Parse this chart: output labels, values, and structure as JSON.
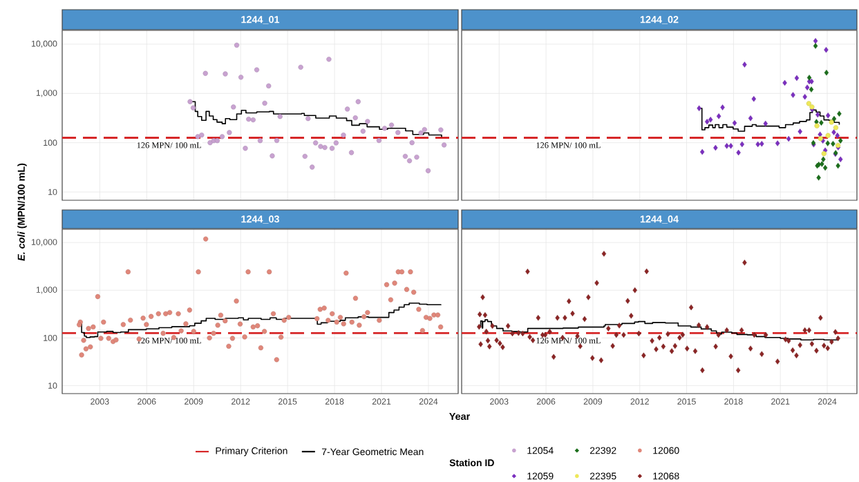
{
  "chart_data": [
    {
      "type": "scatter",
      "title": "1244_01",
      "ylabel": "*E. coli* (MPN/100 mL)",
      "annotations": [
        "Primary Criterion"
      ],
      "legend_title": "Station ID",
      "legend": "bottom",
      "log": true,
      "grid": true,
      "tick_labels": "y",
      "xlim": [
        2000.6,
        2025.9
      ],
      "xticks": [
        2003,
        2006,
        2009,
        2012,
        2015,
        2018,
        2021,
        2024
      ],
      "ylim": [
        6.8,
        19000
      ],
      "yticks": [
        {
          "value": 10,
          "label": "10"
        },
        {
          "value": 100,
          "label": "100"
        },
        {
          "value": 1000,
          "label": "1,000"
        },
        {
          "value": 10000,
          "label": "10,000"
        }
      ],
      "ref_lines": [
        {
          "axis": "y",
          "value": 126,
          "label": "126 MPN/ 100 mL",
          "color": "#d62728",
          "line_style": "dashed"
        }
      ],
      "series": [
        {
          "name": "12054",
          "marker": "circle",
          "color": "#c8a2d0",
          "x": [
            2008.77,
            2008.97,
            2009.75,
            2009.26,
            2009.51,
            2010.05,
            2010.28,
            2010.51,
            2010.82,
            2011.02,
            2011.28,
            2011.54,
            2011.75,
            2012.02,
            2012.3,
            2012.51,
            2012.8,
            2013.03,
            2013.25,
            2013.54,
            2013.79,
            2014.02,
            2014.31,
            2014.52,
            2015.84,
            2016.11,
            2016.31,
            2016.57,
            2016.79,
            2017.11,
            2017.38,
            2017.64,
            2017.84,
            2018.1,
            2018.57,
            2018.82,
            2019.08,
            2019.33,
            2019.51,
            2019.82,
            2020.11,
            2020.84,
            2021.2,
            2021.64,
            2022.05,
            2022.52,
            2022.79,
            2022.95,
            2023.25,
            2023.52,
            2023.75,
            2023.98,
            2024.79,
            2025.0
          ],
          "values": [
            680,
            510,
            2550,
            133,
            143,
            100,
            110,
            110,
            133,
            2490,
            161,
            530,
            9530,
            2130,
            77,
            300,
            291,
            3010,
            110,
            634,
            1420,
            54,
            111,
            340,
            3400,
            53,
            309,
            32,
            99,
            84,
            80,
            4930,
            77,
            99,
            143,
            481,
            63,
            320,
            680,
            171,
            270,
            111,
            196,
            228,
            161,
            53,
            43,
            100,
            51,
            158,
            185,
            27,
            182,
            90
          ]
        },
        {
          "name": "7-Year Geometric Mean",
          "type": "step",
          "color": "#000000",
          "x": [
            2008.82,
            2009.1,
            2009.26,
            2009.51,
            2009.79,
            2010.0,
            2010.25,
            2010.49,
            2010.82,
            2011.03,
            2011.31,
            2011.75,
            2012.05,
            2012.34,
            2013.03,
            2013.84,
            2014.1,
            2015.9,
            2016.07,
            2016.8,
            2017.67,
            2018.11,
            2018.77,
            2019.1,
            2019.59,
            2020.08,
            2020.87,
            2021.39,
            2022.54,
            2023.0,
            2023.69,
            2024.02,
            2024.84
          ],
          "values": [
            680,
            431,
            340,
            284,
            431,
            348,
            294,
            261,
            243,
            309,
            294,
            383,
            453,
            402,
            422,
            431,
            383,
            393,
            357,
            316,
            348,
            316,
            281,
            226,
            243,
            210,
            187,
            196,
            174,
            147,
            158,
            143,
            130
          ]
        }
      ]
    },
    {
      "type": "scatter",
      "title": "1244_02",
      "legend": "bottom",
      "log": true,
      "grid": true,
      "tick_labels": false,
      "xlim": [
        2000.6,
        2025.9
      ],
      "xticks": [
        2003,
        2006,
        2009,
        2012,
        2015,
        2018,
        2021,
        2024
      ],
      "ylim": [
        6.8,
        19000
      ],
      "yticks": [
        {
          "value": 10,
          "label": null
        },
        {
          "value": 100,
          "label": null
        },
        {
          "value": 1000,
          "label": null
        },
        {
          "value": 10000,
          "label": null
        }
      ],
      "ref_lines": [
        {
          "axis": "y",
          "value": 126,
          "label": "126 MPN/ 100 mL",
          "color": "#d62728",
          "line_style": "dashed"
        }
      ],
      "series": [
        {
          "name": "12059",
          "marker": "diamond",
          "color": "#7b2fbf",
          "x": [
            2015.8,
            2016.0,
            2016.31,
            2016.53,
            2016.85,
            2017.06,
            2017.3,
            2017.57,
            2017.83,
            2018.07,
            2018.32,
            2018.55,
            2018.71,
            2019.09,
            2019.3,
            2019.56,
            2019.81,
            2020.05,
            2020.82,
            2021.28,
            2021.53,
            2021.81,
            2022.05,
            2022.26,
            2022.57,
            2022.72,
            2022.85,
            2023.0,
            2023.03,
            2023.13,
            2023.25,
            2023.39,
            2023.54,
            2023.72,
            2023.87,
            2023.93,
            2024.05,
            2024.42,
            2024.52,
            2024.65,
            2024.7,
            2024.85
          ],
          "values": [
            500,
            65,
            267,
            294,
            79,
            344,
            520,
            86,
            86,
            251,
            63,
            93,
            3840,
            313,
            774,
            93,
            95,
            245,
            97,
            1640,
            120,
            929,
            2050,
            168,
            855,
            1320,
            1750,
            1750,
            472,
            92,
            11600,
            370,
            147,
            110,
            70,
            7660,
            357,
            163,
            59,
            140,
            80,
            46
          ]
        },
        {
          "name": "22392",
          "marker": "diamond",
          "color": "#1b6e1b",
          "x": [
            2023.25,
            2022.85,
            2022.98,
            2023.31,
            2023.62,
            2023.11,
            2023.36,
            2023.46,
            2023.66,
            2023.75,
            2023.87,
            2023.45,
            2023.95,
            2024.03,
            2024.37,
            2024.44,
            2024.54,
            2024.69,
            2024.77,
            2024.85
          ],
          "values": [
            9190,
            2090,
            1200,
            264,
            254,
            99,
            34,
            36,
            37,
            46,
            31,
            19.5,
            2640,
            97,
            95,
            305,
            62,
            34,
            388,
            110
          ]
        },
        {
          "name": "22395",
          "marker": "circle",
          "color": "#eee85a",
          "x": [
            2022.82,
            2023.02,
            2023.34,
            2023.57,
            2024.05,
            2023.79,
            2024.27,
            2024.55,
            2024.69
          ],
          "values": [
            624,
            532,
            220,
            121,
            140,
            60,
            261,
            202,
            88
          ]
        },
        {
          "type": "step",
          "color": "#000000",
          "x": [
            2015.85,
            2015.98,
            2016.17,
            2016.42,
            2016.67,
            2016.83,
            2017.07,
            2017.32,
            2017.57,
            2017.98,
            2018.3,
            2018.71,
            2019.2,
            2019.45,
            2020.92,
            2021.33,
            2021.82,
            2022.23,
            2022.67,
            2022.89,
            2023.05,
            2023.29,
            2023.54,
            2023.79,
            2024.11,
            2024.44,
            2024.77
          ],
          "values": [
            500,
            183,
            202,
            228,
            202,
            233,
            202,
            233,
            207,
            190,
            171,
            215,
            233,
            217,
            202,
            233,
            251,
            270,
            290,
            408,
            460,
            418,
            348,
            290,
            284,
            258,
            233
          ]
        }
      ]
    },
    {
      "type": "scatter",
      "title": "1244_03",
      "xlabel": "Year",
      "legend": "bottom",
      "log": true,
      "grid": true,
      "xlim": [
        2000.6,
        2025.9
      ],
      "xticks": [
        2003,
        2006,
        2009,
        2012,
        2015,
        2018,
        2021,
        2024
      ],
      "ylim": [
        6.8,
        19000
      ],
      "yticks": [
        {
          "value": 10,
          "label": "10"
        },
        {
          "value": 100,
          "label": "100"
        },
        {
          "value": 1000,
          "label": "1,000"
        },
        {
          "value": 10000,
          "label": "10,000"
        }
      ],
      "ref_lines": [
        {
          "axis": "y",
          "value": 126,
          "label": "126 MPN/ 100 mL",
          "color": "#d62728",
          "line_style": "dashed"
        }
      ],
      "series": [
        {
          "name": "12060",
          "marker": "circle",
          "color": "#e0877a",
          "x": [
            2001.76,
            2001.69,
            2001.84,
            2001.97,
            2002.12,
            2002.28,
            2002.4,
            2002.58,
            2002.87,
            2003.07,
            2003.24,
            2003.57,
            2003.85,
            2004.04,
            2004.5,
            2004.81,
            2004.96,
            2005.51,
            2005.77,
            2005.98,
            2006.28,
            2006.75,
            2007.05,
            2007.21,
            2007.47,
            2007.73,
            2008.02,
            2008.2,
            2008.5,
            2008.74,
            2009.0,
            2009.3,
            2009.77,
            2010.01,
            2010.27,
            2010.54,
            2010.73,
            2011.01,
            2011.24,
            2011.48,
            2011.73,
            2011.97,
            2012.26,
            2012.48,
            2012.8,
            2013.08,
            2013.29,
            2013.52,
            2013.83,
            2014.09,
            2014.3,
            2014.58,
            2014.78,
            2015.07,
            2016.88,
            2017.08,
            2017.34,
            2017.59,
            2017.85,
            2018.14,
            2018.37,
            2018.58,
            2018.74,
            2019.11,
            2019.34,
            2019.58,
            2019.88,
            2020.11,
            2020.86,
            2021.33,
            2021.59,
            2021.84,
            2022.07,
            2022.3,
            2022.61,
            2022.85,
            2023.06,
            2023.38,
            2023.62,
            2023.85,
            2024.09,
            2024.35,
            2024.6,
            2024.78
          ],
          "values": [
            215,
            189,
            44,
            89,
            59,
            158,
            65,
            170,
            736,
            98,
            215,
            98,
            84,
            91,
            191,
            2430,
            236,
            95,
            260,
            191,
            282,
            322,
            125,
            322,
            341,
            102,
            322,
            141,
            198,
            384,
            137,
            2430,
            11900,
            100,
            125,
            185,
            300,
            228,
            67,
            98,
            594,
            196,
            105,
            2430,
            170,
            180,
            62,
            137,
            2430,
            322,
            35,
            104,
            234,
            270,
            254,
            398,
            423,
            234,
            322,
            215,
            270,
            198,
            2290,
            215,
            678,
            185,
            279,
            341,
            234,
            1310,
            631,
            1410,
            2430,
            2430,
            1040,
            2430,
            910,
            398,
            143,
            270,
            257,
            303,
            303,
            170
          ]
        },
        {
          "type": "step",
          "color": "#000000",
          "x": [
            2001.76,
            2001.84,
            2002.02,
            2002.14,
            2002.38,
            2002.67,
            2002.87,
            2003.44,
            2003.85,
            2004.34,
            2004.83,
            2005.48,
            2005.97,
            2006.78,
            2007.6,
            2008.74,
            2009.07,
            2009.48,
            2009.8,
            2010.37,
            2011.03,
            2011.85,
            2012.18,
            2012.49,
            2013.31,
            2013.88,
            2014.28,
            2014.78,
            2016.9,
            2017.14,
            2017.55,
            2018.37,
            2018.69,
            2019.51,
            2020.17,
            2021.47,
            2021.8,
            2022.12,
            2022.45,
            2022.77,
            2023.1,
            2023.42,
            2023.91,
            2024.79
          ],
          "values": [
            203,
            130,
            109,
            102,
            105,
            107,
            133,
            137,
            130,
            133,
            149,
            149,
            155,
            164,
            172,
            180,
            203,
            228,
            257,
            245,
            257,
            264,
            239,
            257,
            245,
            264,
            245,
            257,
            194,
            208,
            223,
            234,
            264,
            276,
            270,
            341,
            384,
            443,
            498,
            535,
            535,
            510,
            498,
            486
          ]
        }
      ]
    },
    {
      "type": "scatter",
      "title": "1244_04",
      "legend": "bottom",
      "log": true,
      "grid": true,
      "tick_labels": "x",
      "xlim": [
        2000.6,
        2025.9
      ],
      "xticks": [
        2003,
        2006,
        2009,
        2012,
        2015,
        2018,
        2021,
        2024
      ],
      "ylim": [
        6.8,
        19000
      ],
      "yticks": [
        {
          "value": 10,
          "label": null
        },
        {
          "value": 100,
          "label": null
        },
        {
          "value": 1000,
          "label": null
        },
        {
          "value": 10000,
          "label": null
        }
      ],
      "ref_lines": [
        {
          "axis": "y",
          "value": 126,
          "label": "126 MPN/ 100 mL",
          "color": "#d62728",
          "line_style": "dashed"
        }
      ],
      "series": [
        {
          "name": "12068",
          "marker": "diamond",
          "color": "#8b2525",
          "x": [
            2001.72,
            2001.76,
            2001.82,
            2001.95,
            2002.1,
            2002.18,
            2002.28,
            2002.38,
            2002.57,
            2002.84,
            2003.05,
            2003.23,
            2003.57,
            2003.85,
            2004.24,
            2004.51,
            2004.82,
            2004.96,
            2005.16,
            2005.5,
            2005.78,
            2005.95,
            2006.24,
            2006.49,
            2006.73,
            2007.06,
            2007.21,
            2007.47,
            2007.7,
            2008.01,
            2008.19,
            2008.47,
            2008.71,
            2008.97,
            2009.25,
            2009.53,
            2009.71,
            2009.99,
            2010.27,
            2010.5,
            2010.69,
            2010.97,
            2011.23,
            2011.45,
            2011.69,
            2011.94,
            2012.25,
            2012.44,
            2012.79,
            2013.05,
            2013.26,
            2013.51,
            2013.8,
            2014.05,
            2014.26,
            2014.55,
            2014.75,
            2015.03,
            2015.29,
            2015.55,
            2015.78,
            2016.01,
            2016.31,
            2016.86,
            2017.04,
            2017.57,
            2017.83,
            2018.3,
            2018.52,
            2018.71,
            2019.09,
            2019.33,
            2019.81,
            2020.07,
            2020.82,
            2021.33,
            2021.53,
            2021.79,
            2022.03,
            2022.26,
            2022.57,
            2022.84,
            2023.02,
            2023.31,
            2023.57,
            2023.79,
            2024.03,
            2024.28,
            2024.52,
            2024.69
          ],
          "values": [
            171,
            313,
            74,
            714,
            301,
            136,
            88,
            66,
            178,
            89,
            77,
            64,
            178,
            124,
            127,
            124,
            2460,
            105,
            89,
            264,
            116,
            116,
            135,
            40,
            264,
            101,
            264,
            590,
            324,
            109,
            67,
            249,
            714,
            38,
            1420,
            34,
            5830,
            158,
            68,
            116,
            182,
            116,
            597,
            291,
            1000,
            124,
            43,
            2490,
            87,
            58,
            101,
            66,
            121,
            53,
            68,
            101,
            117,
            60,
            437,
            53,
            185,
            21,
            169,
            66,
            116,
            145,
            41,
            21,
            145,
            3790,
            60,
            116,
            46,
            116,
            32,
            93,
            87,
            55,
            43,
            71,
            145,
            145,
            75,
            54,
            264,
            69,
            61,
            83,
            133,
            98
          ]
        },
        {
          "type": "step",
          "color": "#000000",
          "x": [
            2001.77,
            2001.82,
            2001.92,
            2001.95,
            2002.1,
            2002.26,
            2002.51,
            2002.84,
            2003.25,
            2003.82,
            2004.31,
            2004.83,
            2005.95,
            2007.09,
            2008.07,
            2009.71,
            2009.79,
            2010.86,
            2011.67,
            2011.92,
            2012.33,
            2012.82,
            2013.64,
            2014.46,
            2015.27,
            2015.93,
            2016.58,
            2016.91,
            2017.08,
            2017.24,
            2017.89,
            2018.22,
            2018.88,
            2019.45,
            2020.02,
            2021.0,
            2021.49,
            2022.31,
            2023.13,
            2023.79,
            2024.69
          ],
          "values": [
            170,
            226,
            161,
            221,
            240,
            221,
            178,
            158,
            140,
            136,
            133,
            158,
            158,
            161,
            169,
            178,
            191,
            201,
            215,
            221,
            201,
            210,
            206,
            178,
            169,
            154,
            140,
            127,
            121,
            132,
            127,
            118,
            116,
            107,
            102,
            98,
            95,
            91,
            93,
            91,
            93
          ]
        }
      ]
    }
  ]
}
